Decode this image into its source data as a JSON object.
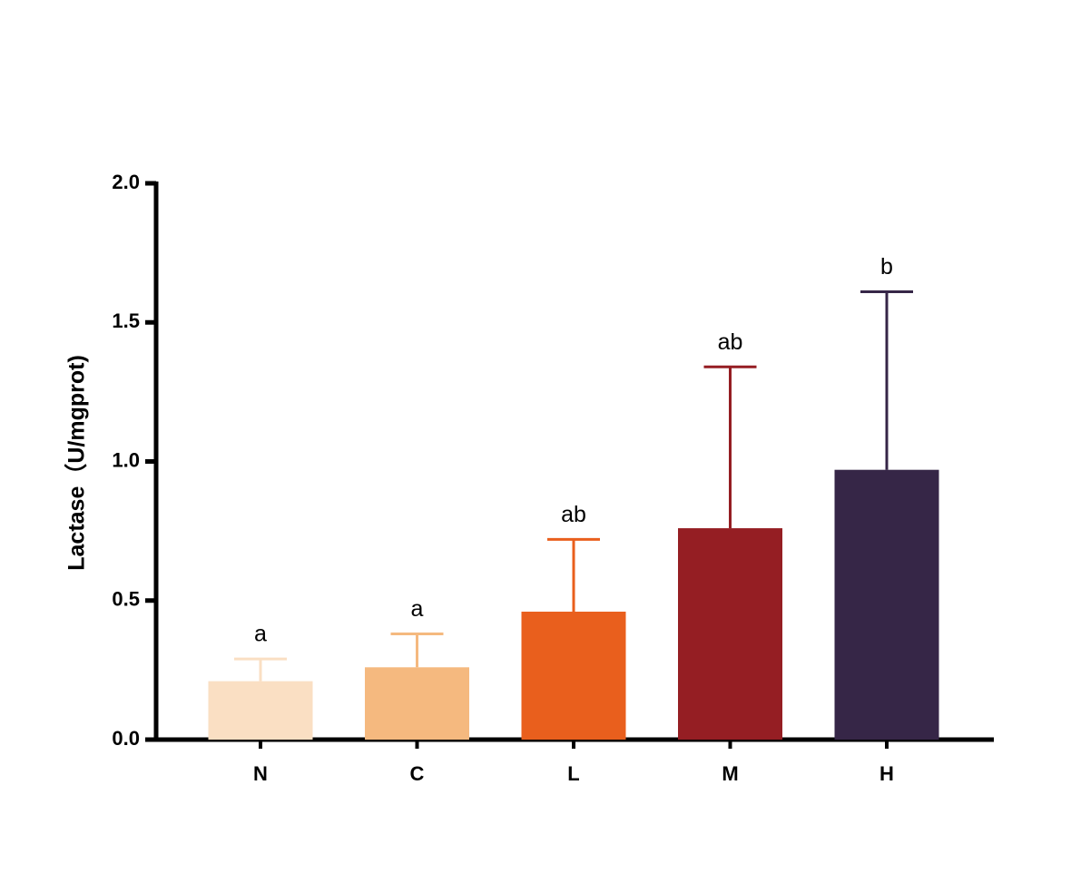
{
  "chart_data": {
    "type": "bar",
    "y_label": "Lactase（U/mgprot)",
    "categories": [
      "N",
      "C",
      "L",
      "M",
      "H"
    ],
    "values": [
      0.21,
      0.26,
      0.46,
      0.76,
      0.97
    ],
    "errors": [
      0.08,
      0.12,
      0.26,
      0.58,
      0.64
    ],
    "annotations": [
      "a",
      "a",
      "ab",
      "ab",
      "b"
    ],
    "colors": [
      "#fadfc3",
      "#f5b97f",
      "#e95f1d",
      "#951e23",
      "#362647"
    ],
    "ylim": [
      0,
      2
    ],
    "yticks": [
      {
        "value": 0,
        "label": "0.0"
      },
      0.5,
      {
        "value": 1,
        "label": "1.0"
      },
      1.5,
      {
        "value": 2,
        "label": "2.0"
      }
    ],
    "grid": false
  }
}
